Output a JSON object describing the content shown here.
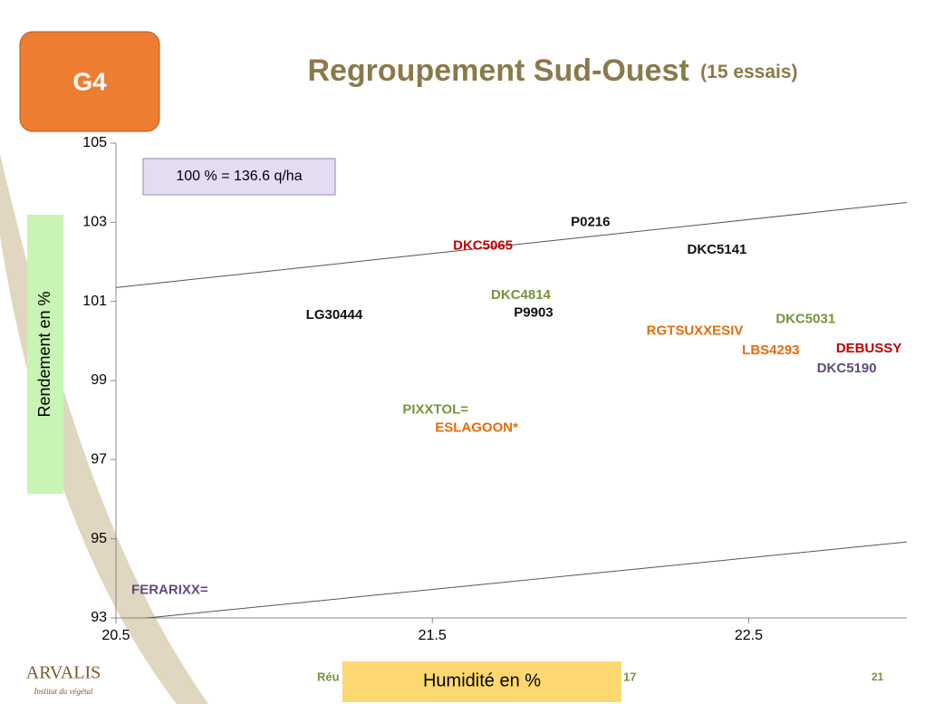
{
  "badge": "G4",
  "chart_data": {
    "type": "scatter",
    "title": "Regroupement Sud-Ouest",
    "subtitle": "(15 essais)",
    "annotation": "100 % =  136.6 q/ha",
    "xlabel": "Humidité en %",
    "ylabel": "Rendement en %",
    "xlim": [
      20.5,
      23.0
    ],
    "xticks": [
      20.5,
      21.5,
      22.5
    ],
    "ylim": [
      93,
      105
    ],
    "yticks": [
      93,
      95,
      97,
      99,
      101,
      103,
      105
    ],
    "points": [
      {
        "label": "P0216",
        "x": 22.0,
        "y": 103.0,
        "color": "#111111"
      },
      {
        "label": "DKC5065",
        "x": 21.66,
        "y": 102.4,
        "color": "#c00000"
      },
      {
        "label": "DKC5141",
        "x": 22.4,
        "y": 102.3,
        "color": "#111111"
      },
      {
        "label": "DKC4814",
        "x": 21.78,
        "y": 101.15,
        "color": "#77933c"
      },
      {
        "label": "P9903",
        "x": 21.82,
        "y": 100.7,
        "color": "#111111"
      },
      {
        "label": "LG30444",
        "x": 21.19,
        "y": 100.65,
        "color": "#111111"
      },
      {
        "label": "RGTSUXXESIV",
        "x": 22.33,
        "y": 100.25,
        "color": "#e46c0a"
      },
      {
        "label": "DKC5031",
        "x": 22.68,
        "y": 100.55,
        "color": "#77933c"
      },
      {
        "label": "LBS4293",
        "x": 22.57,
        "y": 99.75,
        "color": "#e46c0a"
      },
      {
        "label": "DEBUSSY",
        "x": 22.88,
        "y": 99.8,
        "color": "#c00000"
      },
      {
        "label": "DKC5190",
        "x": 22.81,
        "y": 99.3,
        "color": "#604a7b"
      },
      {
        "label": "PIXXTOL=",
        "x": 21.51,
        "y": 98.25,
        "color": "#77933c"
      },
      {
        "label": "ESLAGOON*",
        "x": 21.64,
        "y": 97.8,
        "color": "#e46c0a"
      },
      {
        "label": "FERARIXX=",
        "x": 20.67,
        "y": 93.7,
        "color": "#604a7b"
      }
    ],
    "lines": [
      {
        "x": [
          20.5,
          23.0
        ],
        "y": [
          101.35,
          103.5
        ]
      },
      {
        "x": [
          20.5,
          23.0
        ],
        "y": [
          92.92,
          94.92
        ]
      }
    ]
  },
  "footer": {
    "logo": "ARVALIS",
    "logo_sub": "Institut du végétal",
    "left": "Réu",
    "right": "17",
    "page": "21"
  }
}
